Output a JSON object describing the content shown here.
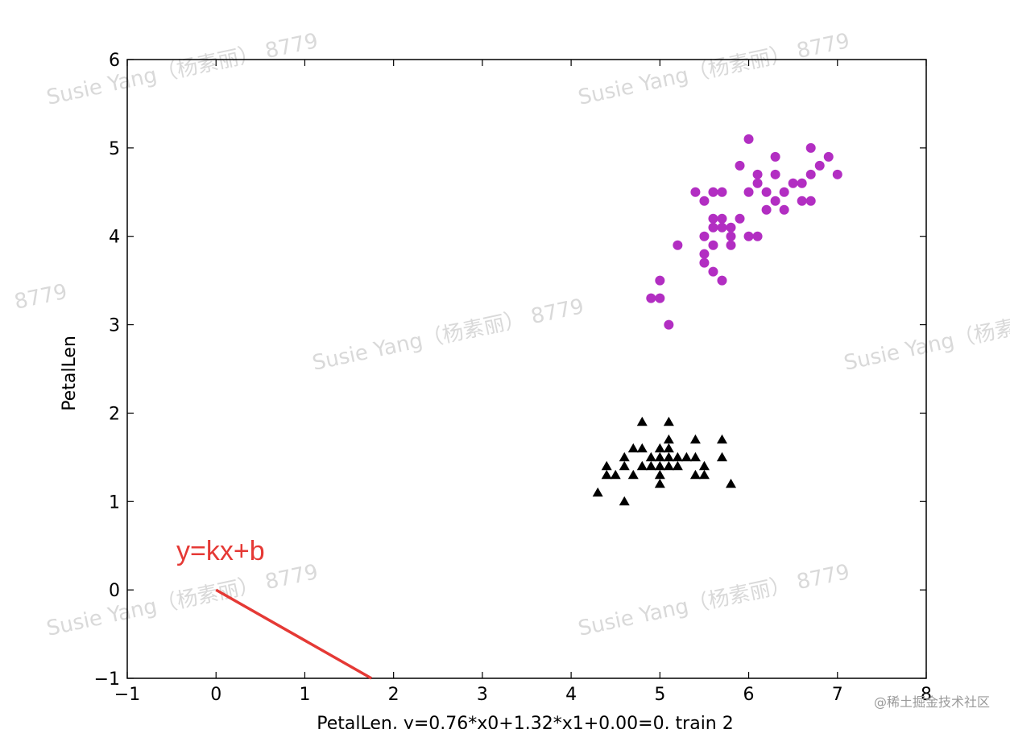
{
  "chart_data": {
    "type": "scatter",
    "xlabel": "PetalLen, y=0.76*x0+1.32*x1+0.00=0, train 2",
    "ylabel": "PetalLen",
    "xlim": [
      -1,
      8
    ],
    "ylim": [
      -1,
      6
    ],
    "x_ticks": [
      "−1",
      "0",
      "1",
      "2",
      "3",
      "4",
      "5",
      "6",
      "7",
      "8"
    ],
    "y_ticks": [
      "−1",
      "0",
      "1",
      "2",
      "3",
      "4",
      "5",
      "6"
    ],
    "grid": false,
    "series": [
      {
        "marker": "circle",
        "color": "#b22ec2",
        "points": [
          [
            6.0,
            5.1
          ],
          [
            6.7,
            5.0
          ],
          [
            6.3,
            4.9
          ],
          [
            6.9,
            4.9
          ],
          [
            5.9,
            4.8
          ],
          [
            6.8,
            4.8
          ],
          [
            6.1,
            4.7
          ],
          [
            6.3,
            4.7
          ],
          [
            6.7,
            4.7
          ],
          [
            7.0,
            4.7
          ],
          [
            6.1,
            4.6
          ],
          [
            6.5,
            4.6
          ],
          [
            6.6,
            4.6
          ],
          [
            5.4,
            4.5
          ],
          [
            5.6,
            4.5
          ],
          [
            5.7,
            4.5
          ],
          [
            6.0,
            4.5
          ],
          [
            6.2,
            4.5
          ],
          [
            6.4,
            4.5
          ],
          [
            5.5,
            4.4
          ],
          [
            6.3,
            4.4
          ],
          [
            6.6,
            4.4
          ],
          [
            6.7,
            4.4
          ],
          [
            6.2,
            4.3
          ],
          [
            6.4,
            4.3
          ],
          [
            5.6,
            4.2
          ],
          [
            5.7,
            4.2
          ],
          [
            5.9,
            4.2
          ],
          [
            5.6,
            4.1
          ],
          [
            5.7,
            4.1
          ],
          [
            5.8,
            4.1
          ],
          [
            5.5,
            4.0
          ],
          [
            5.8,
            4.0
          ],
          [
            6.0,
            4.0
          ],
          [
            6.1,
            4.0
          ],
          [
            5.2,
            3.9
          ],
          [
            5.6,
            3.9
          ],
          [
            5.8,
            3.9
          ],
          [
            5.5,
            3.8
          ],
          [
            5.5,
            3.7
          ],
          [
            5.6,
            3.6
          ],
          [
            5.0,
            3.5
          ],
          [
            5.7,
            3.5
          ],
          [
            4.9,
            3.3
          ],
          [
            5.0,
            3.3
          ],
          [
            5.1,
            3.0
          ]
        ]
      },
      {
        "marker": "triangle",
        "color": "#000000",
        "points": [
          [
            4.8,
            1.9
          ],
          [
            5.1,
            1.9
          ],
          [
            5.4,
            1.7
          ],
          [
            5.7,
            1.7
          ],
          [
            5.1,
            1.7
          ],
          [
            4.8,
            1.6
          ],
          [
            5.0,
            1.6
          ],
          [
            5.1,
            1.6
          ],
          [
            4.7,
            1.6
          ],
          [
            4.9,
            1.5
          ],
          [
            5.0,
            1.5
          ],
          [
            5.1,
            1.5
          ],
          [
            5.2,
            1.5
          ],
          [
            5.3,
            1.5
          ],
          [
            5.4,
            1.5
          ],
          [
            4.6,
            1.5
          ],
          [
            5.7,
            1.5
          ],
          [
            4.8,
            1.4
          ],
          [
            4.9,
            1.4
          ],
          [
            5.0,
            1.4
          ],
          [
            5.1,
            1.4
          ],
          [
            5.2,
            1.4
          ],
          [
            4.4,
            1.4
          ],
          [
            4.6,
            1.4
          ],
          [
            5.5,
            1.4
          ],
          [
            4.4,
            1.3
          ],
          [
            4.5,
            1.3
          ],
          [
            4.7,
            1.3
          ],
          [
            5.0,
            1.3
          ],
          [
            5.4,
            1.3
          ],
          [
            5.5,
            1.3
          ],
          [
            5.0,
            1.2
          ],
          [
            5.8,
            1.2
          ],
          [
            4.3,
            1.1
          ],
          [
            4.6,
            1.0
          ]
        ]
      }
    ],
    "annotation": {
      "text": "y=kx+b",
      "color": "#e53935",
      "line": [
        [
          0,
          0
        ],
        [
          1.75,
          -1
        ]
      ]
    }
  },
  "watermark": {
    "text": "Susie Yang（杨素丽） 8779",
    "short": "8779"
  },
  "credit": "@稀土掘金技术社区"
}
